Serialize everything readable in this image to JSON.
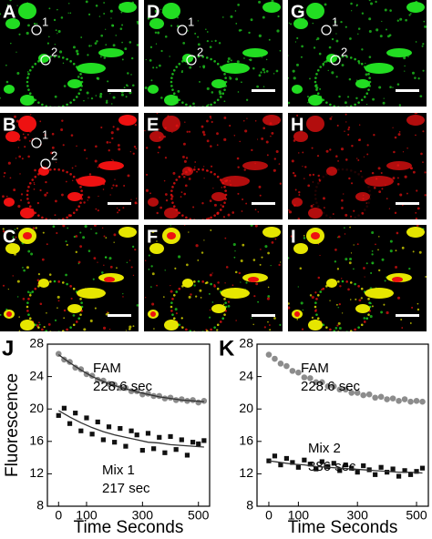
{
  "figure": {
    "panels": [
      {
        "label": "A",
        "markers": [
          "1",
          "2"
        ]
      },
      {
        "label": "D",
        "markers": [
          "1",
          "2"
        ]
      },
      {
        "label": "G",
        "markers": [
          "1",
          "2"
        ]
      },
      {
        "label": "B",
        "markers": [
          "1",
          "2"
        ]
      },
      {
        "label": "E"
      },
      {
        "label": "H"
      },
      {
        "label": "C"
      },
      {
        "label": "F"
      },
      {
        "label": "I"
      }
    ]
  },
  "chart_data": [
    {
      "type": "scatter",
      "panel_label": "J",
      "xlabel": "Time Seconds",
      "ylabel": "Fluorescence",
      "xlim": [
        -40,
        540
      ],
      "ylim": [
        8,
        28
      ],
      "xticks": [
        0,
        100,
        300,
        500
      ],
      "yticks": [
        8,
        12,
        16,
        20,
        24,
        28
      ],
      "series": [
        {
          "name": "FAM",
          "annotation": "228.6 sec",
          "color": "#8c8c8c",
          "marker": "circle",
          "x": [
            0,
            20,
            40,
            60,
            80,
            100,
            120,
            140,
            160,
            180,
            200,
            220,
            240,
            260,
            280,
            300,
            320,
            340,
            360,
            380,
            400,
            420,
            440,
            460,
            480,
            500,
            520
          ],
          "values": [
            26.8,
            26.1,
            25.8,
            25.1,
            24.9,
            24.3,
            24.1,
            23.6,
            23.5,
            23.1,
            23.0,
            22.6,
            22.6,
            22.2,
            22.2,
            21.8,
            21.9,
            21.6,
            21.6,
            21.3,
            21.4,
            21.1,
            21.2,
            21.0,
            21.1,
            20.8,
            21.0
          ]
        },
        {
          "name": "Mix 1",
          "annotation": "217 sec",
          "color": "#111111",
          "marker": "square",
          "x": [
            0,
            20,
            40,
            60,
            80,
            100,
            120,
            140,
            160,
            180,
            200,
            220,
            240,
            260,
            280,
            300,
            320,
            340,
            360,
            380,
            400,
            420,
            440,
            460,
            480,
            500,
            520
          ],
          "values": [
            19.2,
            20.1,
            18.2,
            19.5,
            17.3,
            18.9,
            16.9,
            18.4,
            16.2,
            17.8,
            15.9,
            17.6,
            15.4,
            17.3,
            16.8,
            14.9,
            17.0,
            15.1,
            16.5,
            14.6,
            16.6,
            15.0,
            16.2,
            14.3,
            15.9,
            15.7,
            16.1
          ]
        },
        {
          "type": "line",
          "color": "#333333",
          "x": [
            0,
            40,
            80,
            120,
            160,
            200,
            240,
            280,
            320,
            360,
            400,
            440,
            480,
            520
          ],
          "values": [
            26.7,
            25.7,
            24.8,
            24.0,
            23.4,
            22.9,
            22.5,
            22.1,
            21.8,
            21.5,
            21.3,
            21.1,
            21.0,
            20.9
          ]
        },
        {
          "type": "line",
          "color": "#333333",
          "x": [
            0,
            40,
            80,
            120,
            160,
            200,
            240,
            280,
            320,
            360,
            400,
            440,
            480,
            520
          ],
          "values": [
            19.8,
            19.0,
            18.3,
            17.7,
            17.2,
            16.8,
            16.5,
            16.2,
            15.9,
            15.8,
            15.6,
            15.5,
            15.4,
            15.3
          ]
        }
      ]
    },
    {
      "type": "scatter",
      "panel_label": "K",
      "xlabel": "Time Seconds",
      "xlim": [
        -40,
        540
      ],
      "ylim": [
        8,
        28
      ],
      "xticks": [
        0,
        100,
        300,
        500
      ],
      "yticks": [
        8,
        12,
        16,
        20,
        24,
        28
      ],
      "series": [
        {
          "name": "FAM",
          "annotation": "228.6 sec",
          "color": "#8c8c8c",
          "marker": "circle",
          "x": [
            0,
            20,
            40,
            60,
            80,
            100,
            120,
            140,
            160,
            180,
            200,
            220,
            240,
            260,
            280,
            300,
            320,
            340,
            360,
            380,
            400,
            420,
            440,
            460,
            480,
            500,
            520
          ],
          "values": [
            26.7,
            26.2,
            25.6,
            25.3,
            24.7,
            24.5,
            23.9,
            23.8,
            23.3,
            23.3,
            22.8,
            22.8,
            22.4,
            22.4,
            22.0,
            22.0,
            21.7,
            21.8,
            21.4,
            21.5,
            21.2,
            21.3,
            21.0,
            21.2,
            20.9,
            21.0,
            20.9
          ]
        },
        {
          "name": "Mix 2",
          "annotation": "386 sec",
          "color": "#111111",
          "marker": "square",
          "x": [
            0,
            20,
            40,
            60,
            80,
            100,
            120,
            140,
            160,
            180,
            200,
            220,
            240,
            260,
            280,
            300,
            320,
            340,
            360,
            380,
            400,
            420,
            440,
            460,
            480,
            500,
            520
          ],
          "values": [
            13.6,
            14.2,
            13.1,
            13.9,
            13.4,
            12.8,
            13.7,
            13.2,
            12.6,
            13.5,
            12.9,
            13.3,
            12.4,
            13.1,
            12.7,
            12.2,
            13.0,
            12.5,
            11.9,
            12.8,
            12.2,
            12.6,
            11.7,
            12.4,
            11.9,
            12.3,
            12.7
          ]
        },
        {
          "type": "line",
          "color": "#333333",
          "x": [
            0,
            40,
            80,
            120,
            160,
            200,
            240,
            280,
            320,
            360,
            400,
            440,
            480,
            520
          ],
          "values": [
            13.6,
            13.4,
            13.2,
            13.1,
            12.9,
            12.8,
            12.7,
            12.6,
            12.5,
            12.4,
            12.3,
            12.2,
            12.2,
            12.1
          ]
        }
      ]
    }
  ]
}
